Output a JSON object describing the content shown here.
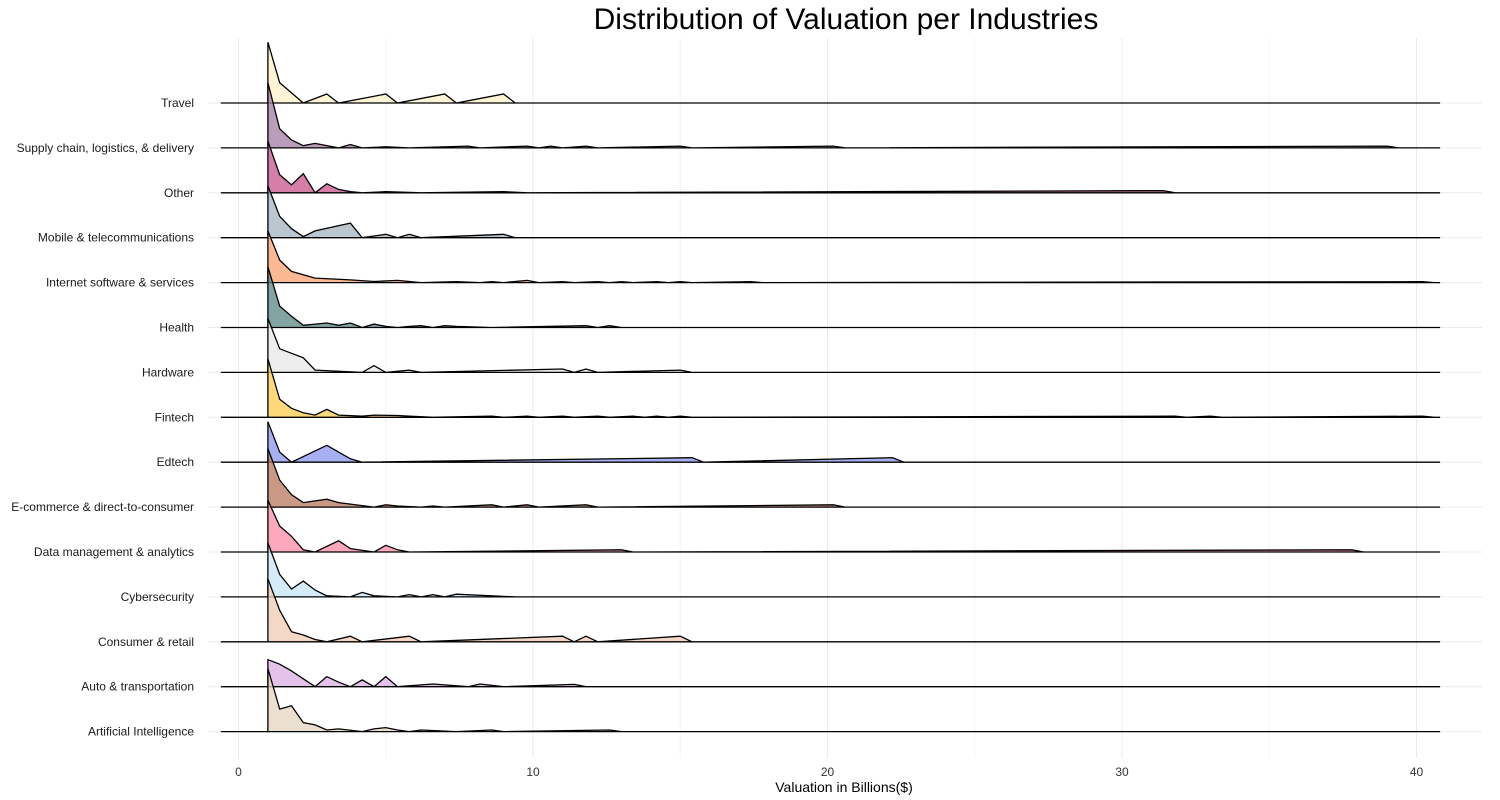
{
  "chart_data": {
    "type": "area",
    "title": "Distribution of Valuation per Industries",
    "xlabel": "Valuation in Billions($)",
    "ylabel": "",
    "xlim": [
      -1,
      41
    ],
    "x_ticks": [
      0,
      10,
      20,
      30,
      40
    ],
    "grid": true,
    "bin_width": 0.4,
    "bin_start": 1.0,
    "series": [
      {
        "name": "Artificial Intelligence",
        "color": "#e5d6c1",
        "bins": [
          [
            1.0,
            2.8
          ],
          [
            1.4,
            1.0
          ],
          [
            1.8,
            1.15
          ],
          [
            2.2,
            0.4
          ],
          [
            2.6,
            0.3
          ],
          [
            3.0,
            0.07
          ],
          [
            3.4,
            0.12
          ],
          [
            3.8,
            0.12
          ],
          [
            4.6,
            0.12
          ],
          [
            5.0,
            0.18
          ],
          [
            5.4,
            0.07
          ],
          [
            6.2,
            0.07
          ],
          [
            6.6,
            0.07
          ],
          [
            7.0,
            0.07
          ],
          [
            8.6,
            0.07
          ],
          [
            12.6,
            0.07
          ]
        ]
      },
      {
        "name": "Auto & transportation",
        "color": "#dcb2e6",
        "bins": [
          [
            1.0,
            1.2
          ],
          [
            1.4,
            1.0
          ],
          [
            1.8,
            0.7
          ],
          [
            2.2,
            0.35
          ],
          [
            2.6,
            0.0
          ],
          [
            3.0,
            0.45
          ],
          [
            3.4,
            0.2
          ],
          [
            4.2,
            0.3
          ],
          [
            5.0,
            0.45
          ],
          [
            6.6,
            0.12
          ],
          [
            7.0,
            0.12
          ],
          [
            7.4,
            0.12
          ],
          [
            8.2,
            0.12
          ],
          [
            8.6,
            0.12
          ],
          [
            11.4,
            0.1
          ]
        ]
      },
      {
        "name": "Consumer & retail",
        "color": "#f0cdb6",
        "bins": [
          [
            1.0,
            2.8
          ],
          [
            1.4,
            1.4
          ],
          [
            1.8,
            0.45
          ],
          [
            2.2,
            0.3
          ],
          [
            2.6,
            0.1
          ],
          [
            3.8,
            0.25
          ],
          [
            5.8,
            0.25
          ],
          [
            11.0,
            0.25
          ],
          [
            11.8,
            0.25
          ],
          [
            15.0,
            0.25
          ]
        ]
      },
      {
        "name": "Cybersecurity",
        "color": "#c8e7f6",
        "bins": [
          [
            1.0,
            2.4
          ],
          [
            1.4,
            1.0
          ],
          [
            1.8,
            0.35
          ],
          [
            2.2,
            0.7
          ],
          [
            2.6,
            0.3
          ],
          [
            3.0,
            0.05
          ],
          [
            3.4,
            0.05
          ],
          [
            4.2,
            0.2
          ],
          [
            4.6,
            0.05
          ],
          [
            5.0,
            0.05
          ],
          [
            5.8,
            0.1
          ],
          [
            6.6,
            0.1
          ],
          [
            7.4,
            0.12
          ],
          [
            7.8,
            0.12
          ],
          [
            8.2,
            0.12
          ],
          [
            8.6,
            0.12
          ],
          [
            9.0,
            0.12
          ]
        ]
      },
      {
        "name": "Data management & analytics",
        "color": "#fd8fab",
        "bins": [
          [
            1.0,
            2.3
          ],
          [
            1.4,
            1.15
          ],
          [
            1.8,
            0.7
          ],
          [
            2.2,
            0.1
          ],
          [
            3.4,
            0.5
          ],
          [
            3.8,
            0.15
          ],
          [
            4.2,
            0.15
          ],
          [
            5.0,
            0.3
          ],
          [
            5.4,
            0.1
          ],
          [
            13.0,
            0.1
          ],
          [
            37.8,
            0.1
          ]
        ]
      },
      {
        "name": "E-commerce & direct-to-consumer",
        "color": "#ba7c64",
        "bins": [
          [
            1.0,
            2.6
          ],
          [
            1.4,
            1.2
          ],
          [
            1.8,
            0.55
          ],
          [
            2.2,
            0.2
          ],
          [
            2.6,
            0.2
          ],
          [
            3.0,
            0.35
          ],
          [
            3.4,
            0.2
          ],
          [
            3.8,
            0.2
          ],
          [
            4.2,
            0.2
          ],
          [
            4.6,
            0.0
          ],
          [
            5.0,
            0.1
          ],
          [
            5.4,
            0.05
          ],
          [
            5.8,
            0.05
          ],
          [
            6.6,
            0.05
          ],
          [
            8.6,
            0.1
          ],
          [
            9.8,
            0.1
          ],
          [
            11.8,
            0.1
          ],
          [
            20.2,
            0.1
          ],
          [
            27.2,
            0.1
          ]
        ]
      },
      {
        "name": "Edtech",
        "color": "#8e9af0",
        "bins": [
          [
            1.0,
            1.8
          ],
          [
            1.4,
            0.45
          ],
          [
            3.0,
            0.75
          ],
          [
            3.4,
            0.45
          ],
          [
            3.8,
            0.15
          ],
          [
            15.4,
            0.2
          ],
          [
            22.2,
            0.2
          ]
        ]
      },
      {
        "name": "Fintech",
        "color": "#fcce55",
        "bins": [
          [
            1.0,
            2.6
          ],
          [
            1.4,
            0.8
          ],
          [
            1.8,
            0.4
          ],
          [
            2.2,
            0.2
          ],
          [
            2.6,
            0.1
          ],
          [
            3.0,
            0.35
          ],
          [
            3.4,
            0.1
          ],
          [
            3.8,
            0.1
          ],
          [
            4.2,
            0.05
          ],
          [
            4.6,
            0.1
          ],
          [
            5.0,
            0.1
          ],
          [
            5.4,
            0.08
          ],
          [
            5.8,
            0.05
          ],
          [
            6.2,
            0.05
          ],
          [
            8.6,
            0.05
          ],
          [
            9.8,
            0.05
          ],
          [
            11.0,
            0.05
          ],
          [
            12.2,
            0.05
          ],
          [
            13.4,
            0.05
          ],
          [
            14.2,
            0.05
          ],
          [
            15.0,
            0.05
          ],
          [
            24.8,
            0.05
          ],
          [
            31.8,
            0.05
          ],
          [
            33.0,
            0.05
          ],
          [
            40.2,
            0.05
          ]
        ]
      },
      {
        "name": "Hardware",
        "color": "#e8e8e8",
        "bins": [
          [
            1.0,
            2.4
          ],
          [
            1.4,
            1.05
          ],
          [
            1.8,
            0.85
          ],
          [
            2.2,
            0.65
          ],
          [
            2.6,
            0.1
          ],
          [
            3.0,
            0.1
          ],
          [
            3.4,
            0.1
          ],
          [
            3.8,
            0.1
          ],
          [
            4.6,
            0.3
          ],
          [
            5.8,
            0.1
          ],
          [
            11.0,
            0.15
          ],
          [
            11.8,
            0.15
          ],
          [
            15.0,
            0.1
          ]
        ]
      },
      {
        "name": "Health",
        "color": "#5f8c8a",
        "bins": [
          [
            1.0,
            2.7
          ],
          [
            1.4,
            0.95
          ],
          [
            1.8,
            0.5
          ],
          [
            2.2,
            0.1
          ],
          [
            2.6,
            0.1
          ],
          [
            3.0,
            0.2
          ],
          [
            3.4,
            0.1
          ],
          [
            3.8,
            0.2
          ],
          [
            4.6,
            0.15
          ],
          [
            5.0,
            0.05
          ],
          [
            5.8,
            0.05
          ],
          [
            6.2,
            0.08
          ],
          [
            7.0,
            0.08
          ],
          [
            7.4,
            0.05
          ],
          [
            7.8,
            0.05
          ],
          [
            8.2,
            0.05
          ],
          [
            11.8,
            0.08
          ],
          [
            12.6,
            0.08
          ]
        ]
      },
      {
        "name": "Internet software & services",
        "color": "#f9a575",
        "bins": [
          [
            1.0,
            2.3
          ],
          [
            1.4,
            1.0
          ],
          [
            1.8,
            0.5
          ],
          [
            2.2,
            0.35
          ],
          [
            2.6,
            0.2
          ],
          [
            3.0,
            0.2
          ],
          [
            3.4,
            0.2
          ],
          [
            3.8,
            0.12
          ],
          [
            4.2,
            0.12
          ],
          [
            4.6,
            0.05
          ],
          [
            5.0,
            0.05
          ],
          [
            5.4,
            0.1
          ],
          [
            5.8,
            0.05
          ],
          [
            7.4,
            0.04
          ],
          [
            7.8,
            0.04
          ],
          [
            8.6,
            0.04
          ],
          [
            9.8,
            0.1
          ],
          [
            11.0,
            0.04
          ],
          [
            12.2,
            0.04
          ],
          [
            13.0,
            0.04
          ],
          [
            14.2,
            0.04
          ],
          [
            15.0,
            0.04
          ],
          [
            17.4,
            0.04
          ],
          [
            40.2,
            0.04
          ]
        ]
      },
      {
        "name": "Mobile & telecommunications",
        "color": "#a8b6c1",
        "bins": [
          [
            1.0,
            2.3
          ],
          [
            1.4,
            0.95
          ],
          [
            1.8,
            0.4
          ],
          [
            2.2,
            0.05
          ],
          [
            2.6,
            0.3
          ],
          [
            3.0,
            0.3
          ],
          [
            3.4,
            0.3
          ],
          [
            3.8,
            0.65
          ],
          [
            5.0,
            0.15
          ],
          [
            5.8,
            0.15
          ],
          [
            9.0,
            0.15
          ]
        ]
      },
      {
        "name": "Other",
        "color": "#c85a90",
        "bins": [
          [
            1.0,
            2.3
          ],
          [
            1.4,
            0.8
          ],
          [
            1.8,
            0.35
          ],
          [
            2.2,
            0.85
          ],
          [
            3.0,
            0.4
          ],
          [
            3.4,
            0.15
          ],
          [
            3.8,
            0.05
          ],
          [
            5.0,
            0.05
          ],
          [
            5.4,
            0.05
          ],
          [
            5.8,
            0.05
          ],
          [
            9.0,
            0.05
          ],
          [
            9.4,
            0.05
          ],
          [
            31.4,
            0.1
          ]
        ]
      },
      {
        "name": "Supply chain, logistics, & delivery",
        "color": "#a780a8",
        "bins": [
          [
            1.0,
            2.9
          ],
          [
            1.4,
            0.85
          ],
          [
            1.8,
            0.35
          ],
          [
            2.2,
            0.1
          ],
          [
            2.6,
            0.2
          ],
          [
            3.0,
            0.2
          ],
          [
            3.8,
            0.15
          ],
          [
            5.0,
            0.05
          ],
          [
            5.4,
            0.05
          ],
          [
            7.8,
            0.08
          ],
          [
            9.8,
            0.08
          ],
          [
            10.6,
            0.08
          ],
          [
            11.8,
            0.08
          ],
          [
            15.0,
            0.08
          ],
          [
            20.2,
            0.08
          ],
          [
            39.0,
            0.08
          ]
        ]
      },
      {
        "name": "Travel",
        "color": "#fdefc9",
        "bins": [
          [
            1.0,
            2.7
          ],
          [
            1.4,
            0.9
          ],
          [
            1.8,
            0.9
          ],
          [
            3.0,
            0.4
          ],
          [
            5.0,
            0.4
          ],
          [
            7.0,
            0.4
          ],
          [
            9.0,
            0.4
          ]
        ]
      }
    ]
  }
}
